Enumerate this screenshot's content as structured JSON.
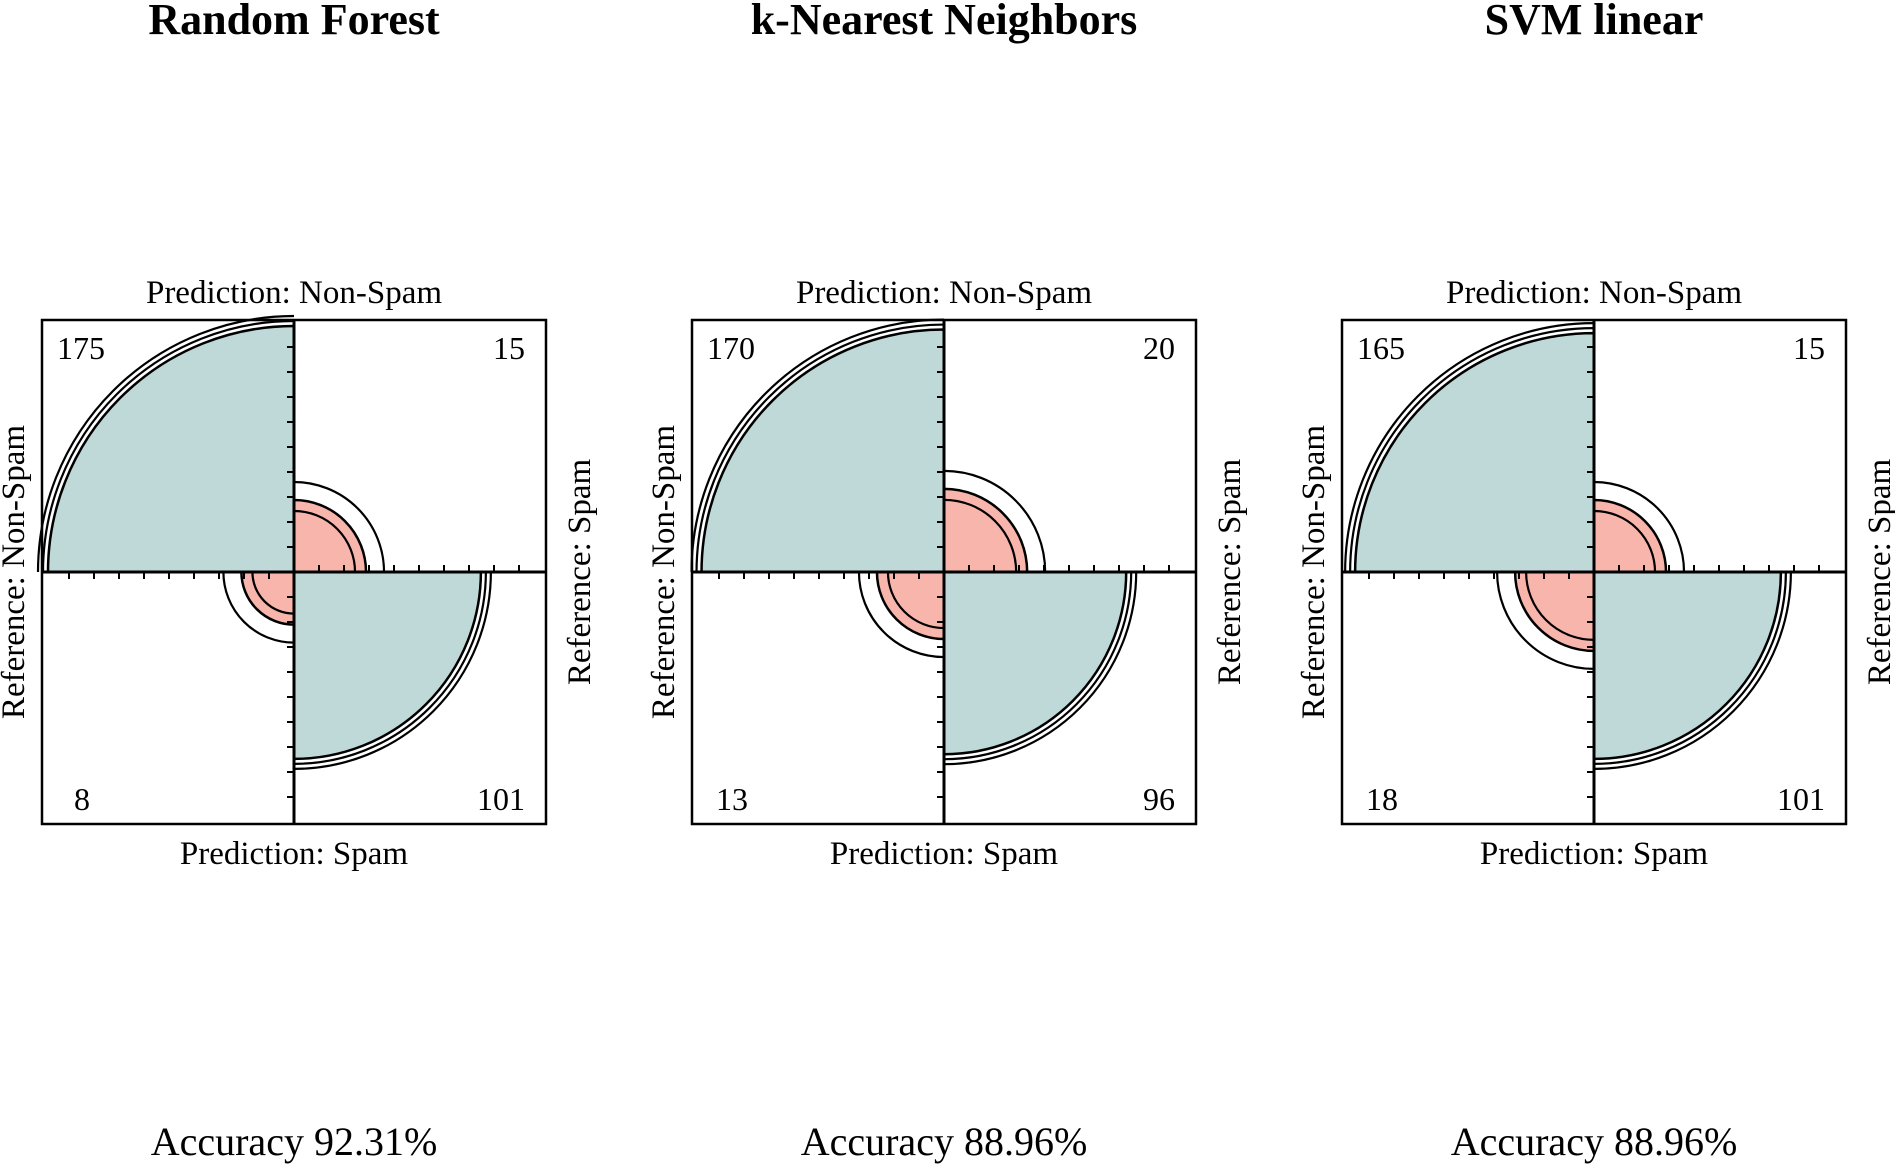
{
  "chart_data": [
    {
      "type": "fourfold",
      "title": "Random Forest",
      "top_label": "Prediction: Non-Spam",
      "bottom_label": "Prediction: Spam",
      "left_label": "Reference: Non-Spam",
      "right_label": "Reference: Spam",
      "cells": {
        "top_left": 175,
        "top_right": 15,
        "bottom_left": 8,
        "bottom_right": 101
      },
      "footer": "Accuracy 92.31%"
    },
    {
      "type": "fourfold",
      "title": "k-Nearest Neighbors",
      "top_label": "Prediction: Non-Spam",
      "bottom_label": "Prediction: Spam",
      "left_label": "Reference: Non-Spam",
      "right_label": "Reference: Spam",
      "cells": {
        "top_left": 170,
        "top_right": 20,
        "bottom_left": 13,
        "bottom_right": 96
      },
      "footer": "Accuracy 88.96%"
    },
    {
      "type": "fourfold",
      "title": "SVM linear",
      "top_label": "Prediction: Non-Spam",
      "bottom_label": "Prediction: Spam",
      "left_label": "Reference: Non-Spam",
      "right_label": "Reference: Spam",
      "cells": {
        "top_left": 165,
        "top_right": 15,
        "bottom_left": 18,
        "bottom_right": 101
      },
      "footer": "Accuracy 88.96%"
    }
  ],
  "colors": {
    "correct": "#bfd9d8",
    "incorrect": "#f7b5ab",
    "line": "#000000"
  }
}
